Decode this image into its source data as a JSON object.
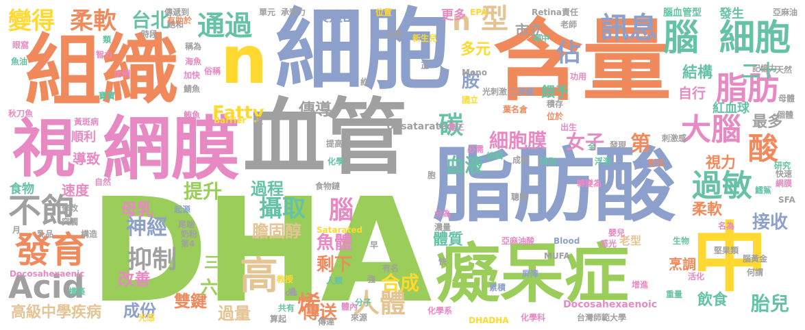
{
  "colors": {
    "green": "#9ACD5A",
    "blue": "#8DA0CB",
    "orange": "#F08A5D",
    "pink": "#E78AC3",
    "gray": "#A0A0A0",
    "yellow": "#FFD92F",
    "teal": "#66C2A5",
    "tan": "#E5C494"
  },
  "words": [
    {
      "text": "DHA",
      "color": "green"
    },
    {
      "text": "脂肪酸",
      "color": "blue"
    },
    {
      "text": "血管",
      "color": "gray"
    },
    {
      "text": "含量",
      "color": "orange"
    },
    {
      "text": "細胞",
      "color": "blue"
    },
    {
      "text": "組織",
      "color": "orange"
    },
    {
      "text": "網膜",
      "color": "pink"
    },
    {
      "text": "視",
      "color": "pink"
    },
    {
      "text": "癡呆症",
      "color": "green"
    },
    {
      "text": "中",
      "color": "yellow"
    },
    {
      "text": "n",
      "color": "yellow"
    },
    {
      "text": "腦",
      "color": "teal"
    },
    {
      "text": "細胞",
      "color": "teal"
    },
    {
      "text": "訊息",
      "color": "blue"
    },
    {
      "text": "脂肪",
      "color": "pink"
    },
    {
      "text": "大腦",
      "color": "pink"
    },
    {
      "text": "過敏",
      "color": "teal"
    },
    {
      "text": "酸",
      "color": "orange"
    },
    {
      "text": "發育",
      "color": "orange"
    },
    {
      "text": "不飽",
      "color": "gray"
    },
    {
      "text": "Acid",
      "color": "gray"
    },
    {
      "text": "高",
      "color": "tan"
    },
    {
      "text": "人體",
      "color": "tan"
    },
    {
      "text": "變得",
      "color": "yellow"
    },
    {
      "text": "柔軟",
      "color": "orange"
    },
    {
      "text": "台北",
      "color": "teal"
    },
    {
      "text": "通過",
      "color": "teal"
    },
    {
      "text": "型",
      "color": "tan"
    },
    {
      "text": "n",
      "color": "tan"
    },
    {
      "text": "佔",
      "color": "blue"
    },
    {
      "text": "碳",
      "color": "teal"
    },
    {
      "text": "細胞膜",
      "color": "pink"
    },
    {
      "text": "女子",
      "color": "pink"
    },
    {
      "text": "第",
      "color": "orange"
    },
    {
      "text": "攝取",
      "color": "teal"
    },
    {
      "text": "腦",
      "color": "pink"
    },
    {
      "text": "抑制",
      "color": "gray"
    },
    {
      "text": "神經",
      "color": "blue"
    },
    {
      "text": "母乳",
      "color": "pink"
    },
    {
      "text": "提升",
      "color": "green"
    },
    {
      "text": "過程",
      "color": "teal"
    },
    {
      "text": "血液",
      "color": "teal"
    },
    {
      "text": "傳導",
      "color": "gray"
    },
    {
      "text": "Fatty",
      "color": "yellow"
    },
    {
      "text": "膽固醇",
      "color": "tan"
    },
    {
      "text": "魚體",
      "color": "pink"
    },
    {
      "text": "剩下",
      "color": "orange"
    },
    {
      "text": "合成",
      "color": "yellow"
    },
    {
      "text": "烯",
      "color": "orange"
    },
    {
      "text": "傳送",
      "color": "orange"
    },
    {
      "text": "過量",
      "color": "tan"
    },
    {
      "text": "雙鍵",
      "color": "orange"
    },
    {
      "text": "成份",
      "color": "blue"
    },
    {
      "text": "改善",
      "color": "pink"
    },
    {
      "text": "六",
      "color": "green"
    },
    {
      "text": "三",
      "color": "green"
    },
    {
      "text": "高級中學疾病",
      "color": "tan"
    },
    {
      "text": "Docosahexaenic",
      "color": "pink"
    },
    {
      "text": "胎兒",
      "color": "teal"
    },
    {
      "text": "飲食",
      "color": "teal"
    },
    {
      "text": "接收",
      "color": "blue"
    },
    {
      "text": "柔軟",
      "color": "orange"
    },
    {
      "text": "視力",
      "color": "orange"
    },
    {
      "text": "最多",
      "color": "gray"
    },
    {
      "text": "紅血球",
      "color": "teal"
    },
    {
      "text": "結構",
      "color": "teal"
    },
    {
      "text": "二十",
      "color": "teal"
    },
    {
      "text": "自行",
      "color": "pink"
    },
    {
      "text": "餵予",
      "color": "teal"
    },
    {
      "text": "胺",
      "color": "blue"
    },
    {
      "text": "多元",
      "color": "yellow"
    },
    {
      "text": "更多",
      "color": "pink"
    },
    {
      "text": "製造出",
      "color": "blue"
    },
    {
      "text": "市立",
      "color": "gray"
    },
    {
      "text": "腦血管型",
      "color": "teal"
    },
    {
      "text": "發生",
      "color": "teal"
    },
    {
      "text": "體質",
      "color": "teal"
    },
    {
      "text": "烹調",
      "color": "orange"
    },
    {
      "text": "老型",
      "color": "tan"
    },
    {
      "text": "速度",
      "color": "pink"
    },
    {
      "text": "食物",
      "color": "teal"
    },
    {
      "text": "順利",
      "color": "pink"
    },
    {
      "text": "導致",
      "color": "pink"
    },
    {
      "text": "SFA",
      "color": "gray"
    },
    {
      "text": "MUFA",
      "color": "gray"
    },
    {
      "text": "Unsatarated",
      "color": "gray"
    },
    {
      "text": "Satarated",
      "color": "yellow"
    },
    {
      "text": "Docosahexaenoic",
      "color": "pink"
    },
    {
      "text": "DHADHA",
      "color": "yellow"
    },
    {
      "text": "Mono",
      "color": "gray"
    },
    {
      "text": "Retina",
      "color": "gray"
    },
    {
      "text": "EPA",
      "color": "yellow"
    },
    {
      "text": "Barrier",
      "color": "yellow"
    },
    {
      "text": "Blood",
      "color": "blue"
    },
    {
      "text": "cis",
      "color": "gray"
    },
    {
      "text": "亞麻油酸",
      "color": "pink"
    },
    {
      "text": "堅果類",
      "color": "gray"
    },
    {
      "text": "腦黃金",
      "color": "gray"
    },
    {
      "text": "何謂",
      "color": "gray"
    },
    {
      "text": "台灣師範大學",
      "color": "gray"
    },
    {
      "text": "化學系",
      "color": "pink"
    },
    {
      "text": "化學科",
      "color": "pink"
    },
    {
      "text": "來源",
      "color": "gray"
    },
    {
      "text": "共有",
      "color": "teal"
    },
    {
      "text": "人類",
      "color": "teal"
    },
    {
      "text": "教授",
      "color": "yellow"
    },
    {
      "text": "食物鏈",
      "color": "gray"
    },
    {
      "text": "有名",
      "color": "gray"
    },
    {
      "text": "分為",
      "color": "pink"
    },
    {
      "text": "濃量",
      "color": "gray"
    },
    {
      "text": "轉變為",
      "color": "pink"
    },
    {
      "text": "聰明",
      "color": "gray"
    },
    {
      "text": "研究",
      "color": "teal"
    },
    {
      "text": "網膜",
      "color": "pink"
    },
    {
      "text": "鱈鯊",
      "color": "teal"
    },
    {
      "text": "嬰兒",
      "color": "pink"
    },
    {
      "text": "感光",
      "color": "pink"
    },
    {
      "text": "生物",
      "color": "teal"
    },
    {
      "text": "名為",
      "color": "pink"
    },
    {
      "text": "重量",
      "color": "teal"
    },
    {
      "text": "屏障",
      "color": "blue"
    },
    {
      "text": "累積",
      "color": "blue"
    },
    {
      "text": "活化",
      "color": "pink"
    },
    {
      "text": "增進",
      "color": "pink"
    },
    {
      "text": "浮游",
      "color": "teal"
    },
    {
      "text": "形式",
      "color": "orange"
    },
    {
      "text": "刺激感",
      "color": "gray"
    },
    {
      "text": "發現",
      "color": "gray"
    },
    {
      "text": "成熟",
      "color": "gray"
    },
    {
      "text": "磷脂",
      "color": "teal"
    },
    {
      "text": "編輯",
      "color": "teal"
    },
    {
      "text": "葉名倉",
      "color": "orange"
    },
    {
      "text": "積存",
      "color": "gray"
    },
    {
      "text": "位於",
      "color": "orange"
    },
    {
      "text": "出生",
      "color": "pink"
    },
    {
      "text": "國立",
      "color": "yellow"
    },
    {
      "text": "二年級",
      "color": "blue"
    },
    {
      "text": "光刺激",
      "color": "gray"
    },
    {
      "text": "第三",
      "color": "pink"
    },
    {
      "text": "必需",
      "color": "pink"
    },
    {
      "text": "化學",
      "color": "teal"
    },
    {
      "text": "提高",
      "color": "gray"
    },
    {
      "text": "功用",
      "color": "pink"
    },
    {
      "text": "海中",
      "color": "teal"
    },
    {
      "text": "老師",
      "color": "gray"
    },
    {
      "text": "責任",
      "color": "gray"
    },
    {
      "text": "亞麻油",
      "color": "gray"
    },
    {
      "text": "新生兒",
      "color": "yellow"
    },
    {
      "text": "位置",
      "color": "yellow"
    },
    {
      "text": "承受力",
      "color": "gray"
    },
    {
      "text": "單元",
      "color": "gray"
    },
    {
      "text": "傳遞到",
      "color": "gray"
    },
    {
      "text": "時段",
      "color": "gray"
    },
    {
      "text": "飽和",
      "color": "gray"
    },
    {
      "text": "眼窩",
      "color": "pink"
    },
    {
      "text": "魚油",
      "color": "teal"
    },
    {
      "text": "智力",
      "color": "pink"
    },
    {
      "text": "比例",
      "color": "pink"
    },
    {
      "text": "稱為",
      "color": "gray"
    },
    {
      "text": "海魚",
      "color": "pink"
    },
    {
      "text": "加快",
      "color": "pink"
    },
    {
      "text": "俗稱",
      "color": "pink"
    },
    {
      "text": "寶寶",
      "color": "teal"
    },
    {
      "text": "鯖魚",
      "color": "gray"
    },
    {
      "text": "秋刀魚",
      "color": "pink"
    },
    {
      "text": "黃斑病",
      "color": "pink"
    },
    {
      "text": "鮪魚",
      "color": "pink"
    },
    {
      "text": "修改",
      "color": "gray"
    },
    {
      "text": "突觸",
      "color": "gray"
    },
    {
      "text": "構造",
      "color": "gray"
    },
    {
      "text": "起源",
      "color": "blue"
    },
    {
      "text": "尾端",
      "color": "gray"
    },
    {
      "text": "奶粉",
      "color": "gray"
    },
    {
      "text": "第4",
      "color": "gray"
    },
    {
      "text": "乳品",
      "color": "gray"
    },
    {
      "text": "光感",
      "color": "yellow"
    },
    {
      "text": "構築",
      "color": "teal"
    },
    {
      "text": "自然",
      "color": "pink"
    },
    {
      "text": "有助於",
      "color": "orange"
    },
    {
      "text": "類",
      "color": "teal"
    },
    {
      "text": "算起",
      "color": "gray"
    },
    {
      "text": "傳達",
      "color": "gray"
    },
    {
      "text": "體內",
      "color": "pink"
    },
    {
      "text": "分子",
      "color": "teal"
    },
    {
      "text": "強",
      "color": "gray"
    },
    {
      "text": "月",
      "color": "gray"
    },
    {
      "text": "快",
      "color": "gray"
    },
    {
      "text": "更",
      "color": "gray"
    },
    {
      "text": "早",
      "color": "gray"
    },
    {
      "text": "約",
      "color": "gray"
    },
    {
      "text": "正",
      "color": "gray"
    },
    {
      "text": "心理",
      "color": "gray"
    },
    {
      "text": "全",
      "color": "teal"
    },
    {
      "text": "記憶力",
      "color": "gray"
    },
    {
      "text": "天然",
      "color": "gray"
    },
    {
      "text": "母體",
      "color": "gray"
    },
    {
      "text": "個體",
      "color": "gray"
    },
    {
      "text": "快速",
      "color": "gray"
    },
    {
      "text": "慮",
      "color": "gray"
    },
    {
      "text": "胞",
      "color": "gray"
    }
  ]
}
